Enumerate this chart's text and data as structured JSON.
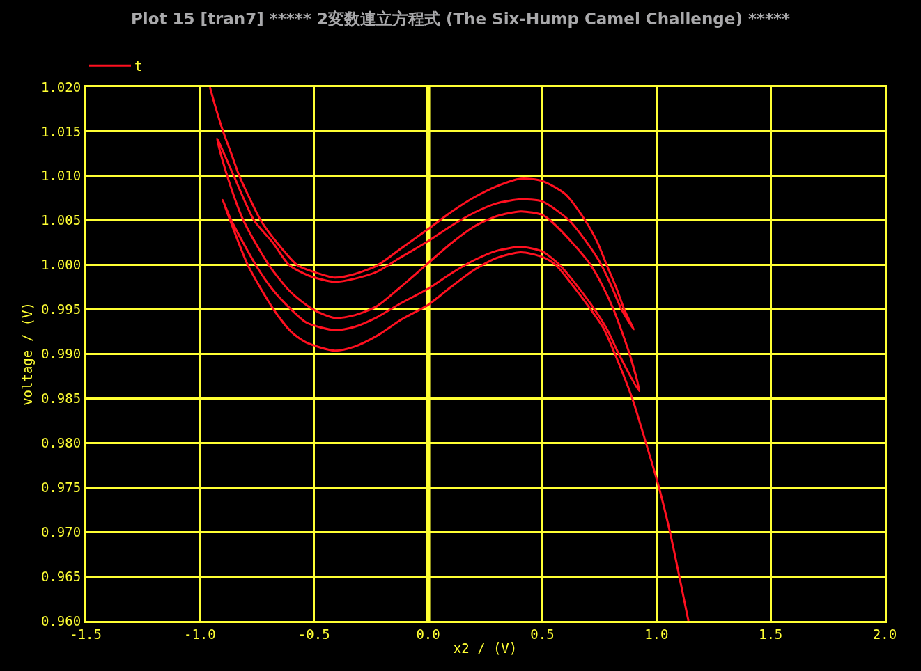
{
  "chart_data": {
    "type": "line",
    "title": "Plot 15 [tran7] ***** 2変数連立方程式 (The Six-Hump Camel Challenge) *****",
    "xlabel": "x2 / (V)",
    "ylabel": "voltage / (V)",
    "series": [
      {
        "name": "t",
        "color": "#ff1020",
        "x": [
          -0.956,
          -0.931,
          -0.898,
          -0.862,
          -0.827,
          -0.782,
          -0.733,
          -0.662,
          -0.574,
          -0.503,
          -0.409,
          -0.322,
          -0.223,
          -0.123,
          0,
          0.1,
          0.2,
          0.3,
          0.406,
          0.5,
          0.6,
          0.688,
          0.741,
          0.782,
          0.824,
          0.859,
          0.9,
          0.847,
          0.806,
          0.759,
          0.694,
          0.618,
          0.5,
          0.406,
          0.3,
          0.2,
          0.1,
          0,
          -0.123,
          -0.223,
          -0.322,
          -0.409,
          -0.523,
          -0.609,
          -0.68,
          -0.762,
          -0.851,
          -0.925,
          -0.88,
          -0.809,
          -0.698,
          -0.6,
          -0.504,
          -0.409,
          -0.322,
          -0.223,
          -0.123,
          0,
          0.1,
          0.2,
          0.3,
          0.406,
          0.5,
          0.535,
          0.629,
          0.712,
          0.765,
          0.812,
          0.882,
          0.924,
          0.835,
          0.785,
          0.729,
          0.659,
          0.576,
          0.5,
          0.406,
          0.3,
          0.2,
          0.1,
          0,
          -0.123,
          -0.223,
          -0.322,
          -0.409,
          -0.533,
          -0.6,
          -0.68,
          -0.755,
          -0.862,
          -0.9,
          -0.867,
          -0.79,
          -0.677,
          -0.6,
          -0.533,
          -0.409,
          -0.322,
          -0.223,
          -0.123,
          0,
          0.1,
          0.2,
          0.3,
          0.406,
          0.5,
          0.559,
          0.641,
          0.712,
          0.77,
          0.818,
          0.894,
          0.954,
          1.011,
          1.059,
          1.1,
          1.14
        ],
        "values": [
          1.02,
          1.0177,
          1.015,
          1.0125,
          1.01,
          1.0075,
          1.005,
          1.0025,
          1.0,
          0.99924,
          0.99858,
          0.99898,
          0.99995,
          1.00177,
          1.00404,
          1.00594,
          1.00758,
          1.00885,
          1.0097,
          1.00943,
          1.00798,
          1.005,
          1.00256,
          1.0,
          0.99744,
          0.995,
          0.99277,
          0.995,
          0.99744,
          1.0,
          1.00256,
          1.005,
          1.00714,
          1.00738,
          1.00693,
          1.00586,
          1.00438,
          1.00268,
          1.00081,
          0.99925,
          0.99846,
          0.9981,
          0.9988,
          1.0,
          1.0025,
          1.005,
          1.01,
          1.0142,
          1.01,
          1.005,
          1.0,
          0.9969,
          0.995,
          0.99404,
          0.99435,
          0.99539,
          0.99747,
          1.00021,
          1.00242,
          1.0043,
          1.00549,
          1.00602,
          1.00563,
          1.005,
          1.00256,
          1.0,
          0.9976,
          0.995,
          0.99,
          0.98584,
          0.99,
          0.9927,
          0.995,
          0.99744,
          1.0,
          1.00151,
          1.00202,
          1.00159,
          1.00052,
          0.99904,
          0.99734,
          0.99565,
          0.99414,
          0.99305,
          0.99268,
          0.99352,
          0.995,
          0.9972,
          1.0,
          1.005,
          1.0073,
          1.005,
          1.0,
          0.995,
          0.9925,
          0.99128,
          0.99037,
          0.99083,
          0.99206,
          0.99378,
          0.99552,
          0.99753,
          0.99943,
          1.00078,
          1.00142,
          1.0009,
          1.0,
          0.99744,
          0.995,
          0.9928,
          0.99,
          0.985,
          0.98,
          0.975,
          0.97,
          0.965,
          0.96
        ]
      }
    ],
    "xlim": [
      -1.5,
      2.0
    ],
    "xticks": [
      {
        "value": -1.5,
        "label": "-1.5"
      },
      {
        "value": -1,
        "label": "-1.0"
      },
      {
        "value": -0.5,
        "label": "-0.5"
      },
      {
        "value": 0,
        "label": "0.0"
      },
      0.5,
      {
        "value": 1,
        "label": "1.0"
      },
      1.5,
      {
        "value": 2,
        "label": "2.0"
      }
    ],
    "ylim": [
      0.96,
      1.02
    ],
    "yticks": [
      {
        "value": 0.96,
        "label": "0.960"
      },
      0.965,
      {
        "value": 0.97,
        "label": "0.970"
      },
      0.975,
      {
        "value": 0.98,
        "label": "0.980"
      },
      0.985,
      {
        "value": 0.99,
        "label": "0.990"
      },
      0.995,
      {
        "value": 1.0,
        "label": "1.000"
      },
      1.005,
      {
        "value": 1.01,
        "label": "1.010"
      },
      1.015,
      {
        "value": 1.02,
        "label": "1.020"
      }
    ],
    "ref_lines": [
      {
        "axis": "x",
        "value": 0,
        "color": "#ffff33"
      }
    ],
    "grid": true,
    "legend": "top left"
  }
}
